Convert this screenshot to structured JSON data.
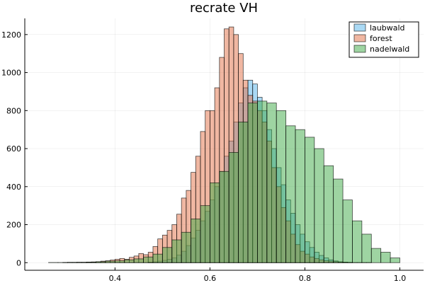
{
  "chart_data": {
    "type": "histogram",
    "title": "recrate VH",
    "xlabel": "",
    "ylabel": "",
    "xlim": [
      0.21,
      1.05
    ],
    "ylim": [
      -40,
      1285
    ],
    "x_ticks": [
      0.4,
      0.6,
      0.8,
      1.0
    ],
    "x_tick_labels": [
      "0.4",
      "0.6",
      "0.8",
      "1.0"
    ],
    "y_ticks": [
      0,
      200,
      400,
      600,
      800,
      1000,
      1200
    ],
    "y_tick_labels": [
      "0",
      "200",
      "400",
      "600",
      "800",
      "1000",
      "1200"
    ],
    "grid": true,
    "legend_position": "top-right",
    "series": [
      {
        "name": "laubwald",
        "color": "#56b4e9",
        "bin_width": 0.01,
        "bins_start": [
          0.47,
          0.48,
          0.49,
          0.5,
          0.51,
          0.52,
          0.53,
          0.54,
          0.55,
          0.56,
          0.57,
          0.58,
          0.59,
          0.6,
          0.61,
          0.62,
          0.63,
          0.64,
          0.65,
          0.66,
          0.67,
          0.68,
          0.69,
          0.7,
          0.71,
          0.72,
          0.73,
          0.74,
          0.75,
          0.76,
          0.77,
          0.78,
          0.79,
          0.8,
          0.81,
          0.82,
          0.83,
          0.84,
          0.85,
          0.86,
          0.87,
          0.88,
          0.89
        ],
        "values": [
          3,
          5,
          8,
          12,
          18,
          25,
          40,
          60,
          90,
          130,
          170,
          220,
          270,
          330,
          400,
          480,
          560,
          640,
          740,
          840,
          920,
          960,
          940,
          870,
          800,
          700,
          600,
          500,
          410,
          330,
          260,
          200,
          150,
          110,
          80,
          55,
          38,
          25,
          15,
          9,
          5,
          3,
          1
        ]
      },
      {
        "name": "forest",
        "color": "#e26f46",
        "bin_width": 0.01,
        "bins_start": [
          0.29,
          0.3,
          0.31,
          0.32,
          0.33,
          0.34,
          0.35,
          0.36,
          0.37,
          0.38,
          0.39,
          0.4,
          0.41,
          0.42,
          0.43,
          0.44,
          0.45,
          0.46,
          0.47,
          0.48,
          0.49,
          0.5,
          0.51,
          0.52,
          0.53,
          0.54,
          0.55,
          0.56,
          0.57,
          0.58,
          0.59,
          0.6,
          0.61,
          0.62,
          0.63,
          0.64,
          0.65,
          0.66,
          0.67,
          0.68,
          0.69,
          0.7,
          0.71,
          0.72,
          0.73,
          0.74,
          0.75,
          0.76,
          0.77,
          0.78,
          0.79,
          0.8,
          0.81,
          0.82,
          0.83,
          0.84,
          0.85,
          0.86,
          0.87,
          0.88,
          0.89,
          0.9,
          0.91,
          0.92,
          0.93
        ],
        "values": [
          1,
          1,
          1,
          2,
          2,
          3,
          4,
          5,
          8,
          10,
          14,
          18,
          22,
          18,
          28,
          35,
          48,
          42,
          55,
          85,
          125,
          145,
          170,
          200,
          255,
          340,
          380,
          475,
          560,
          690,
          800,
          800,
          920,
          1080,
          1230,
          1240,
          1200,
          1100,
          960,
          880,
          850,
          800,
          740,
          640,
          500,
          400,
          290,
          220,
          150,
          95,
          60,
          45,
          30,
          22,
          15,
          10,
          8,
          6,
          4,
          3,
          2,
          1,
          1,
          1,
          1
        ]
      },
      {
        "name": "nadelwald",
        "color": "#3daa45",
        "bin_width": 0.02,
        "bins_start": [
          0.26,
          0.28,
          0.3,
          0.32,
          0.34,
          0.36,
          0.38,
          0.4,
          0.42,
          0.44,
          0.46,
          0.48,
          0.5,
          0.52,
          0.54,
          0.56,
          0.58,
          0.6,
          0.62,
          0.64,
          0.66,
          0.68,
          0.7,
          0.72,
          0.74,
          0.76,
          0.78,
          0.8,
          0.82,
          0.84,
          0.86,
          0.88,
          0.9,
          0.92,
          0.94,
          0.96,
          0.98
        ],
        "values": [
          1,
          1,
          2,
          2,
          3,
          5,
          8,
          10,
          15,
          20,
          30,
          45,
          80,
          120,
          160,
          230,
          300,
          420,
          480,
          580,
          740,
          840,
          850,
          840,
          800,
          720,
          700,
          660,
          600,
          510,
          440,
          330,
          220,
          150,
          75,
          55,
          25
        ]
      }
    ]
  }
}
